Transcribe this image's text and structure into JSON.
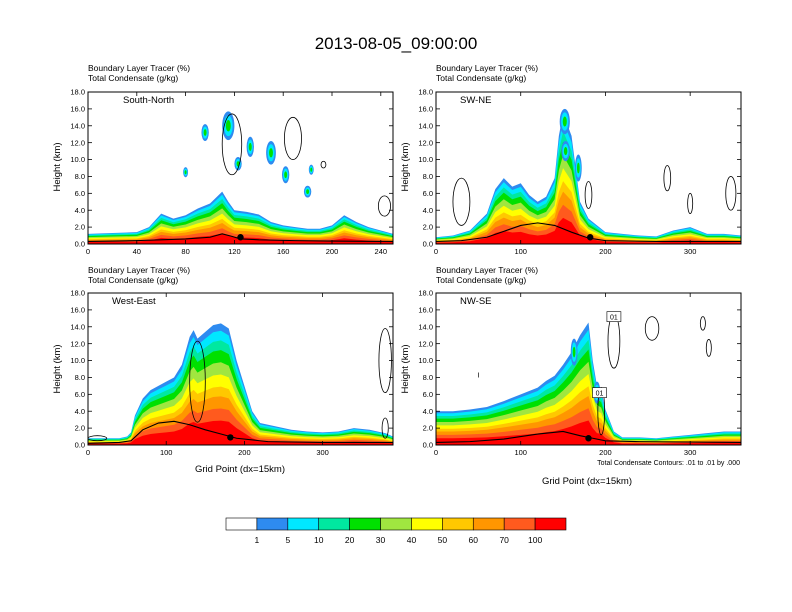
{
  "chart_data": {
    "title": "2013-08-05_09:00:00",
    "type": "contour-cross-section",
    "fill_variable": "Boundary Layer Tracer",
    "fill_units": "(%)",
    "line_variable": "Total Condensate",
    "line_units": "(g/kg)",
    "contour_note": "Total Condensate Contours: .01 to .01 by .000",
    "colorbar": {
      "colors": [
        "#ffffff",
        "#2e8bf0",
        "#00e8ff",
        "#00e8a0",
        "#00e000",
        "#a0e640",
        "#ffff00",
        "#ffc800",
        "#ff9600",
        "#ff5a1e",
        "#ff0000"
      ],
      "labels": [
        "1",
        "5",
        "10",
        "20",
        "30",
        "40",
        "50",
        "60",
        "70",
        "100"
      ]
    },
    "panels": [
      {
        "label": "South-North",
        "header1": "Boundary Layer Tracer   (%)",
        "header2": "Total Condensate   (g/kg)",
        "ylabel": "Height (km)",
        "xlabel": "",
        "xlim": [
          0,
          250
        ],
        "xticks": [
          "0",
          "40",
          "80",
          "120",
          "160",
          "200",
          "240"
        ],
        "ylim": [
          0,
          18
        ],
        "yticks": [
          "0.0",
          "2.0",
          "4.0",
          "6.0",
          "8.0",
          "10.0",
          "12.0",
          "14.0",
          "16.0",
          "18.0"
        ],
        "terrain": [
          [
            0,
            0.3
          ],
          [
            20,
            0.35
          ],
          [
            40,
            0.4
          ],
          [
            60,
            0.5
          ],
          [
            80,
            0.6
          ],
          [
            100,
            0.8
          ],
          [
            110,
            1.2
          ],
          [
            118,
            0.9
          ],
          [
            125,
            0.6
          ],
          [
            140,
            0.5
          ],
          [
            170,
            0.4
          ],
          [
            200,
            0.35
          ],
          [
            250,
            0.3
          ]
        ],
        "marker": [
          125,
          0.8
        ],
        "tracer_profile": {
          "x": [
            0,
            20,
            40,
            50,
            60,
            70,
            80,
            90,
            100,
            110,
            115,
            120,
            130,
            140,
            150,
            160,
            170,
            180,
            190,
            200,
            210,
            220,
            230,
            240,
            250
          ],
          "top": [
            1.2,
            1.3,
            1.4,
            2.0,
            3.6,
            3.0,
            3.4,
            4.2,
            4.8,
            6.2,
            5.0,
            4.0,
            3.8,
            3.5,
            2.6,
            2.2,
            2.0,
            1.8,
            1.8,
            2.2,
            3.4,
            2.6,
            2.0,
            1.6,
            1.2
          ]
        },
        "anvils": [
          {
            "x": 115,
            "y": 14.0,
            "rx": 5,
            "ry": 1.7
          },
          {
            "x": 96,
            "y": 13.2,
            "rx": 3,
            "ry": 1.0
          },
          {
            "x": 133,
            "y": 11.5,
            "rx": 3,
            "ry": 1.2
          },
          {
            "x": 150,
            "y": 10.8,
            "rx": 4,
            "ry": 1.4
          },
          {
            "x": 123,
            "y": 9.5,
            "rx": 3,
            "ry": 0.8
          },
          {
            "x": 162,
            "y": 8.2,
            "rx": 3,
            "ry": 1.0
          },
          {
            "x": 80,
            "y": 8.5,
            "rx": 2,
            "ry": 0.6
          },
          {
            "x": 183,
            "y": 8.8,
            "rx": 2,
            "ry": 0.6
          },
          {
            "x": 180,
            "y": 6.2,
            "rx": 3,
            "ry": 0.7
          }
        ],
        "condensate_contours": [
          {
            "x": 118,
            "y": 11.8,
            "rx": 8,
            "ry": 3.6
          },
          {
            "x": 168,
            "y": 12.5,
            "rx": 7,
            "ry": 2.5
          },
          {
            "x": 193,
            "y": 9.4,
            "rx": 2,
            "ry": 0.4
          },
          {
            "x": 243,
            "y": 4.5,
            "rx": 5,
            "ry": 1.2
          }
        ]
      },
      {
        "label": "SW-NE",
        "header1": "Boundary Layer Tracer   (%)",
        "header2": "Total Condensate   (g/kg)",
        "ylabel": "Height (km)",
        "xlabel": "",
        "xlim": [
          0,
          360
        ],
        "xticks": [
          "0",
          "100",
          "200",
          "300"
        ],
        "ylim": [
          0,
          18
        ],
        "yticks": [
          "0.0",
          "2.0",
          "4.0",
          "6.0",
          "8.0",
          "10.0",
          "12.0",
          "14.0",
          "16.0",
          "18.0"
        ],
        "terrain": [
          [
            0,
            0.3
          ],
          [
            30,
            0.4
          ],
          [
            60,
            0.8
          ],
          [
            80,
            1.5
          ],
          [
            100,
            2.2
          ],
          [
            120,
            2.5
          ],
          [
            140,
            2.2
          ],
          [
            160,
            1.4
          ],
          [
            180,
            0.7
          ],
          [
            200,
            0.4
          ],
          [
            260,
            0.3
          ],
          [
            360,
            0.3
          ]
        ],
        "marker": [
          182,
          0.8
        ],
        "tracer_profile": {
          "x": [
            0,
            20,
            40,
            60,
            70,
            80,
            90,
            100,
            110,
            120,
            130,
            140,
            145,
            150,
            160,
            170,
            180,
            190,
            200,
            220,
            240,
            260,
            280,
            300,
            320,
            340,
            360
          ],
          "top": [
            0.8,
            1.0,
            1.6,
            3.6,
            6.5,
            7.8,
            6.8,
            7.2,
            5.8,
            5.0,
            5.6,
            7.8,
            12.8,
            15.5,
            12.8,
            5.0,
            3.0,
            2.2,
            1.4,
            1.2,
            1.0,
            0.9,
            1.6,
            2.0,
            1.2,
            1.2,
            1.0
          ]
        },
        "anvils": [
          {
            "x": 152,
            "y": 14.5,
            "rx": 6,
            "ry": 1.5
          },
          {
            "x": 153,
            "y": 11.0,
            "rx": 5,
            "ry": 1.2
          },
          {
            "x": 168,
            "y": 9.0,
            "rx": 4,
            "ry": 1.6
          }
        ],
        "condensate_contours": [
          {
            "x": 30,
            "y": 5.0,
            "rx": 10,
            "ry": 2.8
          },
          {
            "x": 180,
            "y": 5.8,
            "rx": 4,
            "ry": 1.6
          },
          {
            "x": 273,
            "y": 7.8,
            "rx": 4,
            "ry": 1.5
          },
          {
            "x": 300,
            "y": 4.8,
            "rx": 3,
            "ry": 1.2
          },
          {
            "x": 348,
            "y": 6.0,
            "rx": 6,
            "ry": 2.0
          }
        ]
      },
      {
        "label": "West-East",
        "header1": "Boundary Layer Tracer   (%)",
        "header2": "Total Condensate   (g/kg)",
        "ylabel": "Height (km)",
        "xlabel": "Grid Point (dx=15km)",
        "xlim": [
          0,
          390
        ],
        "xticks": [
          "0",
          "100",
          "200",
          "300"
        ],
        "ylim": [
          0,
          18
        ],
        "yticks": [
          "0.0",
          "2.0",
          "4.0",
          "6.0",
          "8.0",
          "10.0",
          "12.0",
          "14.0",
          "16.0",
          "18.0"
        ],
        "terrain": [
          [
            0,
            0.2
          ],
          [
            40,
            0.3
          ],
          [
            55,
            0.5
          ],
          [
            70,
            1.8
          ],
          [
            90,
            2.6
          ],
          [
            110,
            2.8
          ],
          [
            130,
            2.4
          ],
          [
            150,
            1.8
          ],
          [
            170,
            1.3
          ],
          [
            190,
            0.8
          ],
          [
            230,
            0.4
          ],
          [
            300,
            0.3
          ],
          [
            390,
            0.3
          ]
        ],
        "marker": [
          182,
          0.9
        ],
        "tracer_profile": {
          "x": [
            0,
            40,
            50,
            55,
            60,
            70,
            80,
            90,
            100,
            110,
            120,
            130,
            135,
            140,
            150,
            160,
            170,
            180,
            190,
            200,
            210,
            220,
            240,
            260,
            280,
            300,
            320,
            340,
            360,
            380,
            390
          ],
          "top": [
            0.8,
            0.8,
            1.0,
            1.5,
            3.5,
            5.5,
            6.5,
            7.0,
            7.5,
            8.0,
            9.5,
            12.8,
            13.6,
            12.6,
            13.4,
            14.2,
            14.4,
            13.8,
            10.0,
            7.0,
            4.0,
            2.6,
            2.2,
            1.8,
            1.6,
            1.5,
            1.6,
            2.0,
            1.8,
            1.4,
            1.0
          ]
        },
        "anvils": [],
        "condensate_contours": [
          {
            "x": 12,
            "y": 0.8,
            "rx": 12,
            "ry": 0.3
          },
          {
            "x": 140,
            "y": 7.5,
            "rx": 10,
            "ry": 4.8
          },
          {
            "x": 380,
            "y": 10.0,
            "rx": 8,
            "ry": 3.8
          },
          {
            "x": 380,
            "y": 2.0,
            "rx": 4,
            "ry": 1.2
          }
        ]
      },
      {
        "label": "NW-SE",
        "header1": "Boundary Layer Tracer   (%)",
        "header2": "Total Condensate   (g/kg)",
        "ylabel": "Height (km)",
        "xlabel": "Grid Point (dx=15km)",
        "xlim": [
          0,
          360
        ],
        "xticks": [
          "0",
          "100",
          "200",
          "300"
        ],
        "ylim": [
          0,
          18
        ],
        "yticks": [
          "0.0",
          "2.0",
          "4.0",
          "6.0",
          "8.0",
          "10.0",
          "12.0",
          "14.0",
          "16.0",
          "18.0"
        ],
        "terrain": [
          [
            0,
            0.3
          ],
          [
            40,
            0.4
          ],
          [
            80,
            0.7
          ],
          [
            120,
            1.3
          ],
          [
            150,
            1.6
          ],
          [
            170,
            1.1
          ],
          [
            185,
            0.8
          ],
          [
            200,
            0.5
          ],
          [
            240,
            0.4
          ],
          [
            360,
            0.3
          ]
        ],
        "marker": [
          180,
          0.8
        ],
        "tracer_profile": {
          "x": [
            0,
            20,
            40,
            60,
            80,
            100,
            120,
            130,
            140,
            150,
            160,
            170,
            180,
            185,
            190,
            195,
            200,
            210,
            220,
            240,
            260,
            280,
            300,
            320,
            340,
            360
          ],
          "top": [
            4.0,
            4.0,
            4.2,
            4.5,
            5.2,
            6.0,
            6.8,
            7.6,
            8.2,
            9.5,
            11.0,
            13.0,
            14.5,
            10.0,
            7.0,
            6.5,
            4.2,
            1.6,
            0.9,
            0.9,
            0.8,
            1.0,
            1.2,
            1.4,
            1.6,
            1.6
          ]
        },
        "anvils": [
          {
            "x": 163,
            "y": 11.0,
            "rx": 4,
            "ry": 1.6
          },
          {
            "x": 190,
            "y": 6.2,
            "rx": 4,
            "ry": 1.3
          }
        ],
        "condensate_contours": [
          {
            "x": 210,
            "y": 12.3,
            "rx": 7,
            "ry": 3.2
          },
          {
            "x": 195,
            "y": 4.0,
            "rx": 4,
            "ry": 2.8
          },
          {
            "x": 255,
            "y": 13.8,
            "rx": 8,
            "ry": 1.4
          },
          {
            "x": 315,
            "y": 14.4,
            "rx": 3,
            "ry": 0.8
          },
          {
            "x": 322,
            "y": 11.5,
            "rx": 3,
            "ry": 1.0
          }
        ]
      }
    ],
    "contour_boxes": [
      {
        "panel": 3,
        "x": 210,
        "y": 15.2,
        "text": "01"
      },
      {
        "panel": 3,
        "x": 193,
        "y": 6.2,
        "text": "01"
      }
    ],
    "stray_marks": [
      {
        "panel": 3,
        "x": 50,
        "y": 8.0,
        "text": "I"
      }
    ]
  }
}
